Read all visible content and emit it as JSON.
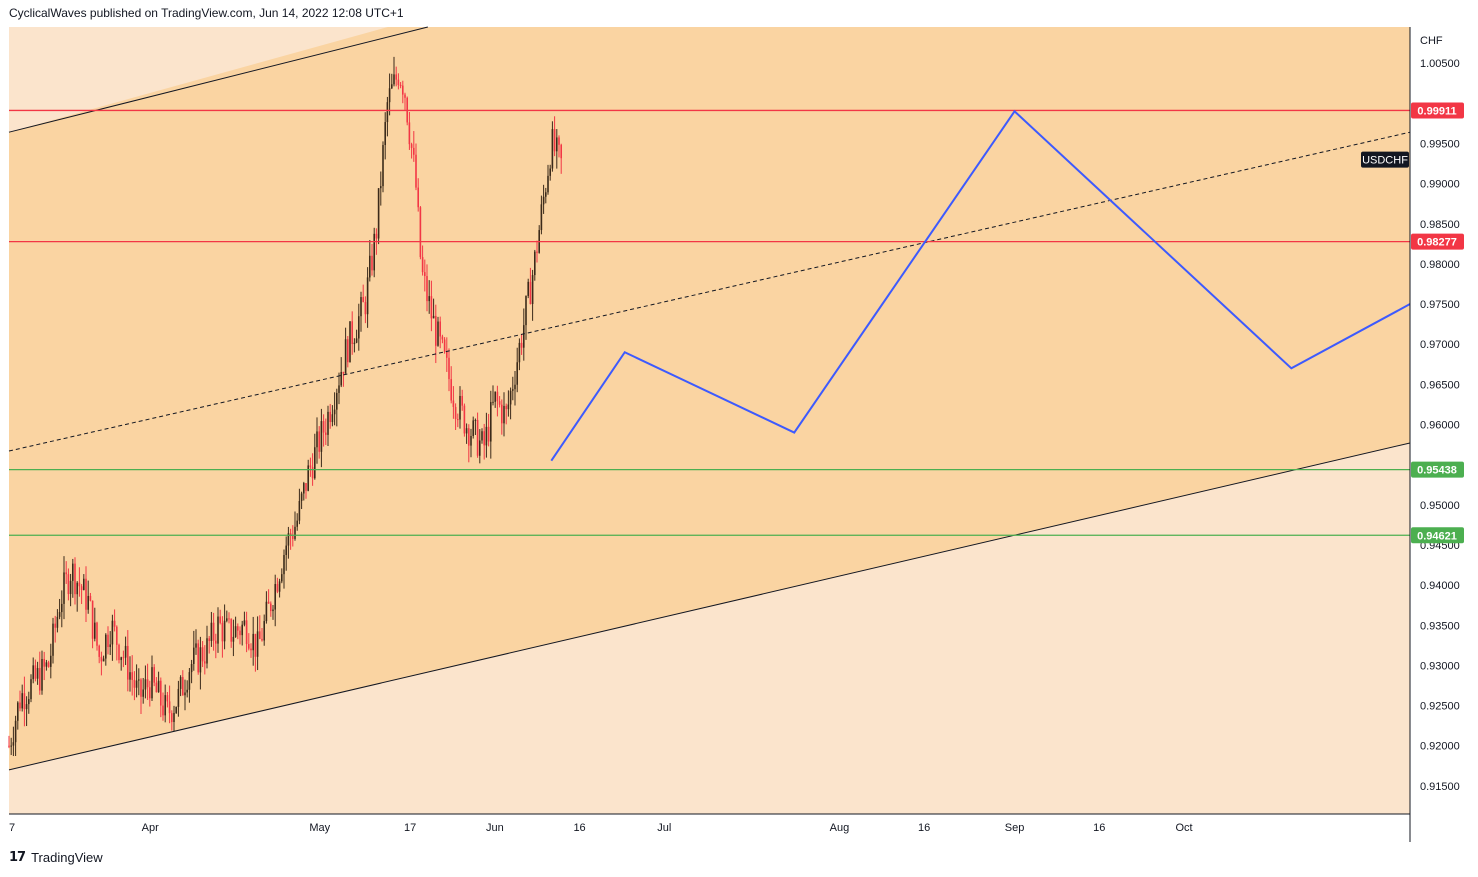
{
  "header": {
    "published": "CyclicalWaves published on TradingView.com, Jun 14, 2022 12:08 UTC+1"
  },
  "footer": {
    "brand": "TradingView"
  },
  "chart_data": {
    "type": "candlestick",
    "symbol": "USDCHF",
    "currency": "CHF",
    "ylim": [
      0.9115,
      1.0095
    ],
    "y_ticks": [
      "1.00500",
      "0.99500",
      "0.99000",
      "0.98500",
      "0.98000",
      "0.97500",
      "0.97000",
      "0.96500",
      "0.96000",
      "0.95000",
      "0.94500",
      "0.94000",
      "0.93500",
      "0.93000",
      "0.92500",
      "0.92000",
      "0.91500"
    ],
    "x_ticks": [
      "7",
      "Apr",
      "May",
      "17",
      "Jun",
      "16",
      "Jul",
      "Aug",
      "16",
      "Sep",
      "16",
      "Oct"
    ],
    "x_tick_dates": [
      "2022-03-07",
      "2022-04-01",
      "2022-05-01",
      "2022-05-17",
      "2022-06-01",
      "2022-06-16",
      "2022-07-01",
      "2022-08-01",
      "2022-08-16",
      "2022-09-01",
      "2022-09-16",
      "2022-10-01"
    ],
    "date_range": [
      "2022-03-07",
      "2022-11-10"
    ],
    "price_path": [
      [
        "2022-03-07",
        0.92
      ],
      [
        "2022-03-09",
        0.926
      ],
      [
        "2022-03-14",
        0.93
      ],
      [
        "2022-03-16",
        0.938
      ],
      [
        "2022-03-18",
        0.942
      ],
      [
        "2022-03-21",
        0.938
      ],
      [
        "2022-03-23",
        0.931
      ],
      [
        "2022-03-25",
        0.935
      ],
      [
        "2022-03-28",
        0.93
      ],
      [
        "2022-03-30",
        0.926
      ],
      [
        "2022-04-01",
        0.928
      ],
      [
        "2022-04-04",
        0.924
      ],
      [
        "2022-04-06",
        0.926
      ],
      [
        "2022-04-08",
        0.93
      ],
      [
        "2022-04-11",
        0.932
      ],
      [
        "2022-04-13",
        0.935
      ],
      [
        "2022-04-15",
        0.934
      ],
      [
        "2022-04-18",
        0.935
      ],
      [
        "2022-04-20",
        0.932
      ],
      [
        "2022-04-22",
        0.937
      ],
      [
        "2022-04-25",
        0.945
      ],
      [
        "2022-04-27",
        0.948
      ],
      [
        "2022-04-29",
        0.954
      ],
      [
        "2022-05-02",
        0.96
      ],
      [
        "2022-05-04",
        0.965
      ],
      [
        "2022-05-06",
        0.97
      ],
      [
        "2022-05-09",
        0.975
      ],
      [
        "2022-05-11",
        0.984
      ],
      [
        "2022-05-13",
        1.0
      ],
      [
        "2022-05-15",
        1.004
      ],
      [
        "2022-05-16",
        1.002
      ],
      [
        "2022-05-18",
        0.99
      ],
      [
        "2022-05-19",
        0.979
      ],
      [
        "2022-05-21",
        0.973
      ],
      [
        "2022-05-23",
        0.968
      ],
      [
        "2022-05-25",
        0.963
      ],
      [
        "2022-05-27",
        0.96
      ],
      [
        "2022-05-30",
        0.957
      ],
      [
        "2022-06-01",
        0.963
      ],
      [
        "2022-06-03",
        0.961
      ],
      [
        "2022-06-06",
        0.972
      ],
      [
        "2022-06-08",
        0.98
      ],
      [
        "2022-06-09",
        0.985
      ],
      [
        "2022-06-11",
        0.995
      ],
      [
        "2022-06-13",
        0.992
      ]
    ],
    "horizontal_levels": [
      {
        "value": 0.99911,
        "label": "0.99911",
        "color": "#f23645"
      },
      {
        "value": 0.98277,
        "label": "0.98277",
        "color": "#f23645"
      },
      {
        "value": 0.95438,
        "label": "0.95438",
        "color": "#4caf50"
      },
      {
        "value": 0.94621,
        "label": "0.94621",
        "color": "#4caf50"
      }
    ],
    "channel": {
      "upper": [
        [
          "2022-03-07",
          0.9964
        ],
        [
          "2022-06-01",
          1.0132
        ]
      ],
      "lower": [
        [
          "2022-03-07",
          0.917
        ],
        [
          "2022-11-10",
          0.9577
        ]
      ],
      "middle": [
        [
          "2022-03-07",
          0.9567
        ],
        [
          "2022-11-10",
          0.9964
        ]
      ]
    },
    "projection": [
      [
        "2022-06-11",
        0.9555
      ],
      [
        "2022-06-24",
        0.969
      ],
      [
        "2022-07-24",
        0.959
      ],
      [
        "2022-09-01",
        0.999
      ],
      [
        "2022-10-20",
        0.967
      ],
      [
        "2022-11-10",
        0.975
      ]
    ],
    "colors": {
      "channel_fill": "#fad4a2",
      "outer_fill": "#fbe4cc",
      "projection": "#3d5afe",
      "candle_up": "#3b2a1a",
      "candle_down": "#f23645"
    }
  }
}
